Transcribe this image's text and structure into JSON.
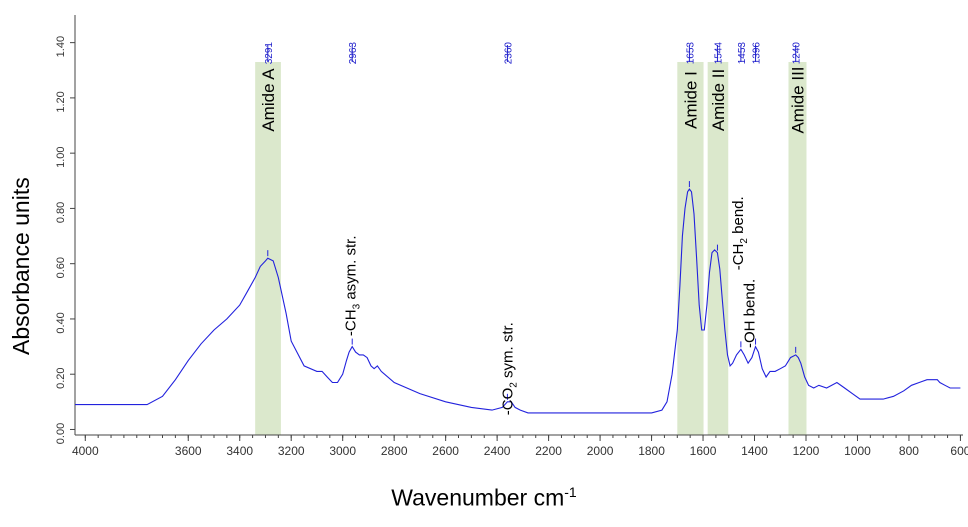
{
  "chart_data": {
    "type": "line",
    "xlabel": "Wavenumber",
    "xlabel_unit": "cm",
    "xlabel_unit_exp": "-1",
    "ylabel": "Absorbance units",
    "xlim": [
      4040,
      590
    ],
    "x_reversed": true,
    "ylim": [
      -0.02,
      1.5
    ],
    "x_ticks": [
      4000,
      3600,
      3400,
      3200,
      3000,
      2800,
      2600,
      2400,
      2200,
      2000,
      1800,
      1600,
      1400,
      1200,
      1000,
      800,
      600
    ],
    "y_ticks": [
      "0.00",
      "0.20",
      "0.40",
      "0.60",
      "0.80",
      "1.00",
      "1.20",
      "1.40"
    ],
    "grid": false,
    "colors": {
      "line": "#2222dd",
      "band": "#dbe8cc",
      "axis": "#444444",
      "peak_label": "#2222cc"
    },
    "series": [
      {
        "x": [
          4040,
          3900,
          3800,
          3760,
          3700,
          3650,
          3600,
          3550,
          3500,
          3450,
          3400,
          3370,
          3340,
          3320,
          3300,
          3291,
          3270,
          3250,
          3220,
          3200,
          3150,
          3100,
          3080,
          3060,
          3040,
          3020,
          3000,
          2985,
          2975,
          2963,
          2950,
          2935,
          2920,
          2905,
          2890,
          2878,
          2865,
          2850,
          2800,
          2700,
          2600,
          2500,
          2420,
          2380,
          2360,
          2345,
          2330,
          2310,
          2280,
          2200,
          2100,
          2000,
          1900,
          1800,
          1760,
          1740,
          1720,
          1700,
          1690,
          1680,
          1670,
          1660,
          1653,
          1645,
          1635,
          1625,
          1615,
          1605,
          1595,
          1585,
          1575,
          1565,
          1555,
          1544,
          1535,
          1525,
          1515,
          1505,
          1495,
          1485,
          1470,
          1453,
          1440,
          1425,
          1410,
          1396,
          1385,
          1370,
          1355,
          1340,
          1320,
          1300,
          1280,
          1260,
          1240,
          1230,
          1220,
          1205,
          1190,
          1170,
          1150,
          1120,
          1080,
          1050,
          1020,
          990,
          960,
          930,
          900,
          860,
          820,
          790,
          760,
          730,
          710,
          700,
          690,
          680,
          660,
          640,
          620,
          600
        ],
        "y": [
          0.09,
          0.09,
          0.09,
          0.09,
          0.12,
          0.18,
          0.25,
          0.31,
          0.36,
          0.4,
          0.45,
          0.5,
          0.55,
          0.59,
          0.61,
          0.62,
          0.61,
          0.55,
          0.42,
          0.32,
          0.23,
          0.21,
          0.21,
          0.19,
          0.17,
          0.17,
          0.2,
          0.25,
          0.28,
          0.3,
          0.28,
          0.27,
          0.27,
          0.26,
          0.23,
          0.22,
          0.23,
          0.21,
          0.17,
          0.13,
          0.1,
          0.08,
          0.07,
          0.08,
          0.1,
          0.1,
          0.08,
          0.07,
          0.06,
          0.06,
          0.06,
          0.06,
          0.06,
          0.06,
          0.07,
          0.1,
          0.2,
          0.36,
          0.52,
          0.7,
          0.8,
          0.86,
          0.87,
          0.86,
          0.78,
          0.62,
          0.45,
          0.36,
          0.36,
          0.45,
          0.57,
          0.64,
          0.65,
          0.64,
          0.58,
          0.47,
          0.36,
          0.27,
          0.23,
          0.24,
          0.27,
          0.29,
          0.27,
          0.24,
          0.26,
          0.3,
          0.28,
          0.22,
          0.19,
          0.21,
          0.21,
          0.22,
          0.23,
          0.26,
          0.27,
          0.26,
          0.24,
          0.19,
          0.16,
          0.15,
          0.16,
          0.15,
          0.17,
          0.15,
          0.13,
          0.11,
          0.11,
          0.11,
          0.11,
          0.12,
          0.14,
          0.16,
          0.17,
          0.18,
          0.18,
          0.18,
          0.18,
          0.17,
          0.16,
          0.15,
          0.15,
          0.15
        ]
      }
    ],
    "peak_labels": [
      {
        "x": 3291,
        "text": "3291"
      },
      {
        "x": 2963,
        "text": "2963"
      },
      {
        "x": 2360,
        "text": "2360"
      },
      {
        "x": 1653,
        "text": "1653"
      },
      {
        "x": 1544,
        "text": "1544"
      },
      {
        "x": 1453,
        "text": "1453"
      },
      {
        "x": 1396,
        "text": "1396"
      },
      {
        "x": 1240,
        "text": "1240"
      }
    ],
    "bands": [
      {
        "x1": 3340,
        "x2": 3240,
        "text": "Amide A"
      },
      {
        "x1": 1700,
        "x2": 1598,
        "text": "Amide I"
      },
      {
        "x1": 1582,
        "x2": 1502,
        "text": "Amide II"
      },
      {
        "x1": 1268,
        "x2": 1198,
        "text": "Amide III"
      }
    ],
    "annotations": [
      {
        "x": 2950,
        "y": 0.52,
        "main": "-CH",
        "sub": "3",
        "rest": " asym. str."
      },
      {
        "x": 2340,
        "y": 0.22,
        "main": "-CO",
        "sub": "2",
        "rest": " sym. str."
      },
      {
        "x": 1445,
        "y": 0.71,
        "main": "-CH",
        "sub": "2",
        "rest": " bend."
      },
      {
        "x": 1400,
        "y": 0.42,
        "main": "-OH bend.",
        "sub": "",
        "rest": ""
      }
    ]
  }
}
